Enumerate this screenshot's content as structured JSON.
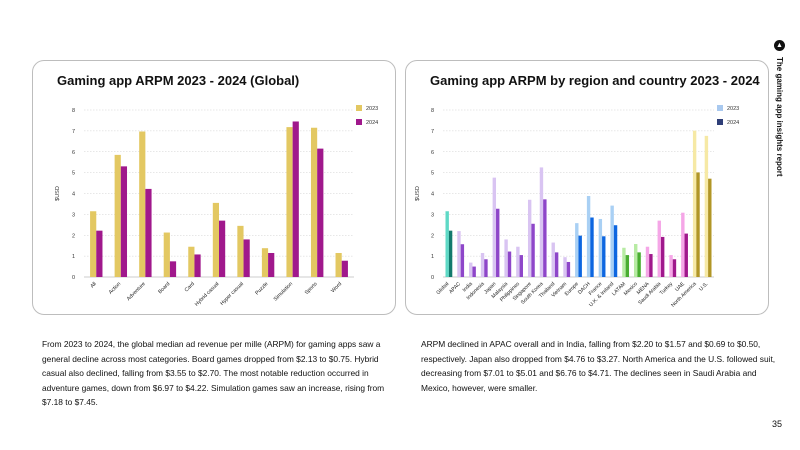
{
  "page": {
    "side_title": "The gaming app insights report",
    "page_number": "35",
    "paragraph_left": "From 2023 to 2024, the global median ad revenue per mille (ARPM) for gaming apps saw a general decline across most categories. Board games dropped from $2.13 to $0.75. Hybrid casual also declined, falling from $3.55 to $2.70. The most notable reduction occurred in adventure games, down from $6.97 to $4.22. Simulation games saw an increase, rising from $7.18 to $7.45.",
    "paragraph_right": "ARPM declined in APAC overall and in India, falling from $2.20 to $1.57 and $0.69 to $0.50, respectively. Japan also dropped from $4.76 to $3.27. North America and the U.S. followed suit, decreasing from $7.01 to $5.01 and $6.76 to $4.71. The declines seen in Saudi Arabia and Mexico, however, were smaller."
  },
  "chart_data": [
    {
      "type": "bar",
      "title": "Gaming app ARPM 2023 - 2024 (Global)",
      "ylabel": "$USD",
      "xlabel": "",
      "ylim": [
        0,
        8
      ],
      "yticks": [
        0,
        1,
        2,
        3,
        4,
        5,
        6,
        7,
        8
      ],
      "grid": "horizontal dotted",
      "legend": "top-right",
      "categories": [
        "All",
        "Action",
        "Adventure",
        "Board",
        "Card",
        "Hybrid casual",
        "Hyper casual",
        "Puzzle",
        "Simulation",
        "Sports",
        "Word"
      ],
      "series": [
        {
          "name": "2023",
          "color": "#e3c862",
          "values": [
            3.15,
            5.85,
            6.97,
            2.13,
            1.45,
            3.55,
            2.45,
            1.38,
            7.18,
            7.15,
            1.15
          ]
        },
        {
          "name": "2024",
          "color": "#a0188c",
          "values": [
            2.22,
            5.3,
            4.22,
            0.75,
            1.08,
            2.7,
            1.8,
            1.15,
            7.45,
            6.15,
            0.78
          ]
        }
      ]
    },
    {
      "type": "bar",
      "title": "Gaming app ARPM by region and country 2023 - 2024",
      "ylabel": "$USD",
      "xlabel": "",
      "ylim": [
        0,
        8
      ],
      "yticks": [
        0,
        1,
        2,
        3,
        4,
        5,
        6,
        7,
        8
      ],
      "grid": "horizontal dotted",
      "legend": "top-right",
      "categories": [
        "Global",
        "APAC",
        "India",
        "Indonesia",
        "Japan",
        "Malaysia",
        "Philippines",
        "Singapore",
        "South Korea",
        "Thailand",
        "Vietnam",
        "Europe",
        "DACH",
        "France",
        "U.K. & Ireland",
        "LATAM",
        "Mexico",
        "MENA",
        "Saudi Arabia",
        "Turkey",
        "UAE",
        "North America",
        "U.S."
      ],
      "series": [
        {
          "name": "2023",
          "color": "#a9c9ef",
          "colors": [
            "#5fd9c6",
            "#d9c4f2",
            "#d9c4f2",
            "#d9c4f2",
            "#d9c4f2",
            "#d9c4f2",
            "#d9c4f2",
            "#d9c4f2",
            "#d9c4f2",
            "#d9c4f2",
            "#d9c4f2",
            "#a9d0f4",
            "#a9d0f4",
            "#a9d0f4",
            "#a9d0f4",
            "#b7eba3",
            "#b7eba3",
            "#f5a6e7",
            "#f5a6e7",
            "#f5a6e7",
            "#f5a6e7",
            "#f6e9a5",
            "#f6e9a5"
          ],
          "values": [
            3.15,
            2.2,
            0.69,
            1.15,
            4.76,
            1.8,
            1.45,
            3.7,
            5.25,
            1.65,
            0.95,
            2.58,
            3.88,
            2.78,
            3.42,
            1.4,
            1.58,
            1.45,
            2.7,
            1.05,
            3.08,
            7.01,
            6.76
          ]
        },
        {
          "name": "2024",
          "color": "#2f3f78",
          "colors": [
            "#137a6d",
            "#8e46c9",
            "#8e46c9",
            "#8e46c9",
            "#8e46c9",
            "#8e46c9",
            "#8e46c9",
            "#8e46c9",
            "#8e46c9",
            "#8e46c9",
            "#8e46c9",
            "#0d66e0",
            "#0d66e0",
            "#0d66e0",
            "#0d66e0",
            "#49ad31",
            "#49ad31",
            "#a0188c",
            "#a0188c",
            "#a0188c",
            "#a0188c",
            "#b19626",
            "#b19626"
          ],
          "values": [
            2.22,
            1.57,
            0.5,
            0.85,
            3.27,
            1.22,
            1.05,
            2.55,
            3.72,
            1.18,
            0.72,
            1.98,
            2.85,
            1.95,
            2.48,
            1.05,
            1.18,
            1.1,
            1.92,
            0.85,
            2.08,
            5.01,
            4.71
          ]
        }
      ]
    }
  ]
}
